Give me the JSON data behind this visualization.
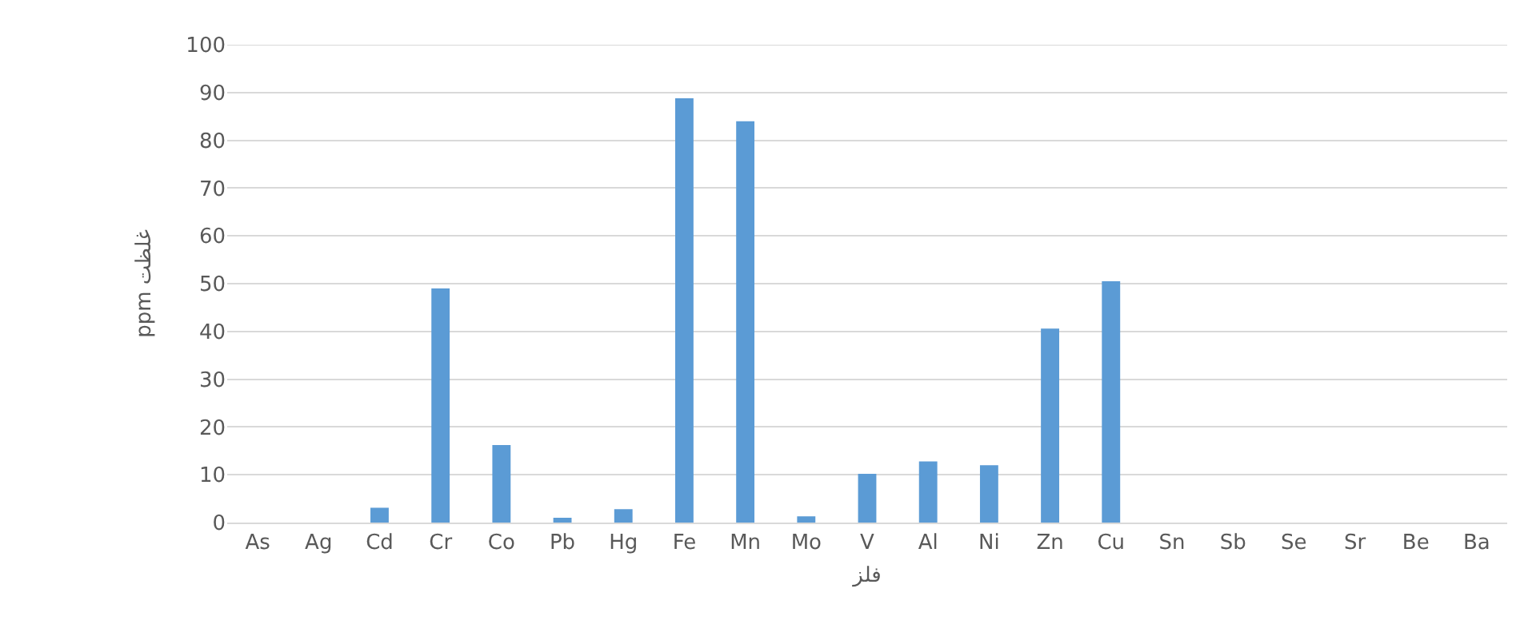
{
  "chart_data": {
    "type": "bar",
    "xlabel": "فلز",
    "ylabel": "ppm غلظت",
    "categories": [
      "As",
      "Ag",
      "Cd",
      "Cr",
      "Co",
      "Pb",
      "Hg",
      "Fe",
      "Mn",
      "Mo",
      "V",
      "Al",
      "Ni",
      "Zn",
      "Cu",
      "Sn",
      "Sb",
      "Se",
      "Sr",
      "Be",
      "Ba"
    ],
    "values": [
      0,
      0,
      3.1,
      49,
      16.2,
      1.0,
      2.8,
      88.8,
      84,
      1.3,
      10.2,
      12.8,
      12.0,
      40.6,
      50.5,
      0,
      0,
      0,
      0,
      0,
      0
    ],
    "color": "#5b9bd5",
    "ylim": [
      0,
      100
    ],
    "yticks": [
      0,
      10,
      20,
      30,
      40,
      50,
      60,
      70,
      80,
      90,
      100
    ],
    "grid": "y"
  }
}
